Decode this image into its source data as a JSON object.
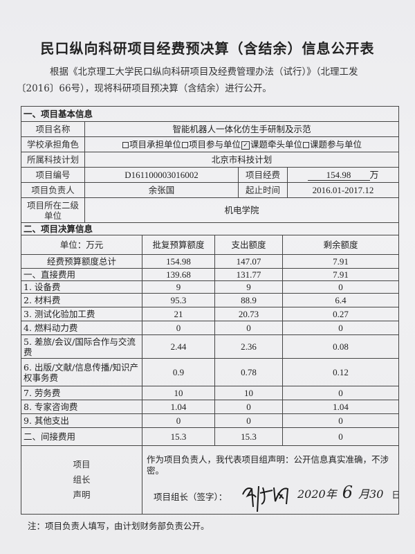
{
  "title": "民口纵向科研项目经费预决算（含结余）信息公开表",
  "intro_line1": "根据《北京理工大学民口纵向科研项目及经费管理办法（试行）》（北理工发",
  "intro_line2": "〔2016〕66号），现将科研项目预决算（含结余）进行公开。",
  "section1": {
    "heading": "一、项目基本信息",
    "name_label": "项目名称",
    "name_value": "智能机器人一体化仿生手研制及示范",
    "role_label": "学校承担角色",
    "role_options": [
      {
        "label": "项目承担单位",
        "checked": false
      },
      {
        "label": "项目参与单位",
        "checked": false
      },
      {
        "label": "课题牵头单位",
        "checked": true
      },
      {
        "label": "课题参与单位",
        "checked": false
      }
    ],
    "plan_label": "所属科技计划",
    "plan_value": "北京市科技计划",
    "code_label": "项目编号",
    "code_value": "D161100003016002",
    "funding_label": "项目经费",
    "funding_value": "154.98",
    "funding_unit": "万",
    "leader_label": "项目负责人",
    "leader_value": "余张国",
    "period_label": "起止时间",
    "period_value": "2016.01-2017.12",
    "dept_label": "项目所在二级单位",
    "dept_value": "机电学院"
  },
  "section2": {
    "heading": "二、项目决算信息",
    "headers": [
      "单位：万元",
      "批复预算额度",
      "支出额度",
      "剩余额度"
    ],
    "rows": [
      [
        "经费预算额度总计",
        "154.98",
        "147.07",
        "7.91"
      ],
      [
        "一、直接费用",
        "139.68",
        "131.77",
        "7.91"
      ],
      [
        "1. 设备费",
        "9",
        "9",
        "0"
      ],
      [
        "2. 材料费",
        "95.3",
        "88.9",
        "6.4"
      ],
      [
        "3. 测试化验加工费",
        "21",
        "20.73",
        "0.27"
      ],
      [
        "4. 燃料动力费",
        "0",
        "0",
        "0"
      ],
      [
        "5. 差旅/会议/国际合作与交流费",
        "2.44",
        "2.36",
        "0.08"
      ],
      [
        "6. 出版/文献/信息传播/知识产权事务费",
        "0.9",
        "0.78",
        "0.12"
      ],
      [
        "7. 劳务费",
        "10",
        "10",
        "0"
      ],
      [
        "8. 专家咨询费",
        "1.04",
        "0",
        "1.04"
      ],
      [
        "9. 其他支出",
        "0",
        "0",
        "0"
      ],
      [
        "二、间接费用",
        "15.3",
        "15.3",
        "0"
      ]
    ]
  },
  "declaration": {
    "label": "项目组长声明",
    "text": "作为项目负责人，我代表项目组声明：公开信息真实准确，不涉密。",
    "sign_label": "项目组长（签字）：",
    "signature": "余张国",
    "date_year": "2020年",
    "date_month": "6",
    "month_char": "月",
    "date_day": "30",
    "day_char": "日"
  },
  "note": "注：项目负责人填写，由计划财务部负责公开。"
}
